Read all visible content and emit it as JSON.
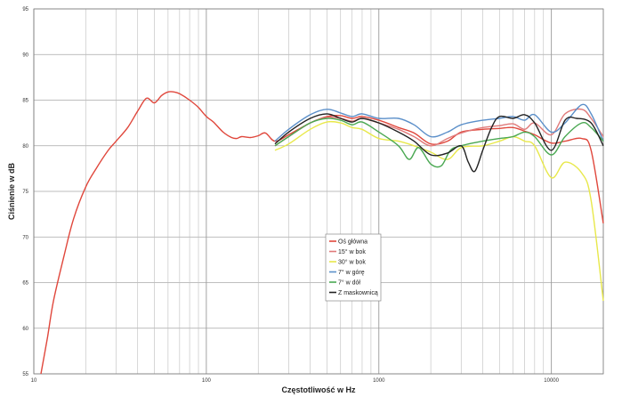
{
  "chart_data": {
    "type": "line",
    "xlabel": "Częstotliwość w Hz",
    "ylabel": "Ciśnienie w dB",
    "xscale": "log",
    "xlim": [
      10,
      20000
    ],
    "ylim": [
      55,
      95
    ],
    "grid": true,
    "legend_position": "center",
    "x_tick_labels": [
      "10",
      "100",
      "1000",
      "10000"
    ],
    "y_tick_labels": [
      "55",
      "60",
      "65",
      "70",
      "75",
      "80",
      "85",
      "90",
      "95"
    ],
    "series": [
      {
        "name": "Oś główna",
        "color": "#e0473c",
        "points": [
          [
            11,
            55
          ],
          [
            12,
            59
          ],
          [
            13,
            63
          ],
          [
            15,
            68
          ],
          [
            17,
            72
          ],
          [
            20,
            75.5
          ],
          [
            23,
            77.5
          ],
          [
            27,
            79.5
          ],
          [
            30,
            80.5
          ],
          [
            35,
            82
          ],
          [
            40,
            83.8
          ],
          [
            45,
            85.2
          ],
          [
            50,
            84.7
          ],
          [
            55,
            85.5
          ],
          [
            60,
            85.9
          ],
          [
            65,
            85.9
          ],
          [
            70,
            85.7
          ],
          [
            80,
            85
          ],
          [
            90,
            84.2
          ],
          [
            100,
            83.2
          ],
          [
            110,
            82.6
          ],
          [
            125,
            81.5
          ],
          [
            140,
            80.9
          ],
          [
            150,
            80.8
          ],
          [
            160,
            81
          ],
          [
            180,
            80.9
          ],
          [
            200,
            81.1
          ],
          [
            220,
            81.4
          ],
          [
            250,
            80.5
          ],
          [
            300,
            81.2
          ],
          [
            400,
            82.5
          ],
          [
            500,
            83.2
          ],
          [
            600,
            83.3
          ],
          [
            700,
            83
          ],
          [
            800,
            83.2
          ],
          [
            1000,
            82.8
          ],
          [
            1300,
            82
          ],
          [
            1600,
            81.4
          ],
          [
            2000,
            80.2
          ],
          [
            2500,
            80.5
          ],
          [
            3000,
            81.5
          ],
          [
            4000,
            81.8
          ],
          [
            5000,
            81.9
          ],
          [
            6000,
            82
          ],
          [
            7000,
            81.6
          ],
          [
            8000,
            81.2
          ],
          [
            10000,
            80.3
          ],
          [
            12000,
            80.5
          ],
          [
            15000,
            80.8
          ],
          [
            17000,
            79.5
          ],
          [
            20000,
            71.5
          ]
        ]
      },
      {
        "name": "15° w bok",
        "color": "#e07a7a",
        "points": [
          [
            250,
            80
          ],
          [
            300,
            81
          ],
          [
            400,
            82.5
          ],
          [
            500,
            83.1
          ],
          [
            600,
            83
          ],
          [
            700,
            82.7
          ],
          [
            800,
            83
          ],
          [
            1000,
            82.5
          ],
          [
            1300,
            81.8
          ],
          [
            1600,
            81
          ],
          [
            2000,
            80
          ],
          [
            2500,
            80.8
          ],
          [
            3000,
            81.4
          ],
          [
            4000,
            82
          ],
          [
            5000,
            82.2
          ],
          [
            6000,
            82.4
          ],
          [
            7000,
            81.8
          ],
          [
            8000,
            82.5
          ],
          [
            10000,
            81.2
          ],
          [
            12000,
            83.5
          ],
          [
            15000,
            84
          ],
          [
            17000,
            83
          ],
          [
            20000,
            81
          ]
        ]
      },
      {
        "name": "30° w bok",
        "color": "#e8e84a",
        "points": [
          [
            250,
            79.5
          ],
          [
            300,
            80.2
          ],
          [
            400,
            81.8
          ],
          [
            500,
            82.6
          ],
          [
            600,
            82.5
          ],
          [
            700,
            82
          ],
          [
            800,
            81.8
          ],
          [
            1000,
            80.8
          ],
          [
            1300,
            80.5
          ],
          [
            1600,
            80
          ],
          [
            2000,
            79.3
          ],
          [
            2500,
            78.5
          ],
          [
            3000,
            79.8
          ],
          [
            4000,
            80
          ],
          [
            5000,
            80.5
          ],
          [
            6000,
            81
          ],
          [
            7000,
            80.5
          ],
          [
            8000,
            80
          ],
          [
            10000,
            76.5
          ],
          [
            12000,
            78.2
          ],
          [
            15000,
            77
          ],
          [
            17000,
            74
          ],
          [
            20000,
            63
          ]
        ]
      },
      {
        "name": "7° w górę",
        "color": "#5b8fc9",
        "points": [
          [
            250,
            80.5
          ],
          [
            300,
            81.8
          ],
          [
            400,
            83.4
          ],
          [
            500,
            84
          ],
          [
            600,
            83.6
          ],
          [
            700,
            83.2
          ],
          [
            800,
            83.5
          ],
          [
            1000,
            83
          ],
          [
            1300,
            83
          ],
          [
            1600,
            82.3
          ],
          [
            2000,
            81
          ],
          [
            2500,
            81.5
          ],
          [
            3000,
            82.3
          ],
          [
            4000,
            82.8
          ],
          [
            5000,
            83
          ],
          [
            6000,
            83.2
          ],
          [
            7000,
            82.8
          ],
          [
            8000,
            83.4
          ],
          [
            10000,
            81.5
          ],
          [
            12000,
            82.5
          ],
          [
            15000,
            84.5
          ],
          [
            17000,
            83.5
          ],
          [
            20000,
            80.5
          ]
        ]
      },
      {
        "name": "7° w dół",
        "color": "#4aa852",
        "points": [
          [
            250,
            80
          ],
          [
            300,
            81
          ],
          [
            400,
            82.5
          ],
          [
            500,
            83
          ],
          [
            600,
            82.8
          ],
          [
            700,
            82.3
          ],
          [
            800,
            82.6
          ],
          [
            1000,
            81.5
          ],
          [
            1300,
            80
          ],
          [
            1500,
            78.5
          ],
          [
            1700,
            79.8
          ],
          [
            2000,
            78
          ],
          [
            2300,
            77.8
          ],
          [
            2600,
            79.5
          ],
          [
            3000,
            80
          ],
          [
            4000,
            80.5
          ],
          [
            5000,
            80.8
          ],
          [
            6000,
            81
          ],
          [
            7000,
            81.5
          ],
          [
            8000,
            81
          ],
          [
            10000,
            79
          ],
          [
            12000,
            81
          ],
          [
            15000,
            82.5
          ],
          [
            17000,
            82
          ],
          [
            20000,
            80.5
          ]
        ]
      },
      {
        "name": "Z maskownicą",
        "color": "#222222",
        "points": [
          [
            250,
            80.2
          ],
          [
            300,
            81.5
          ],
          [
            400,
            83
          ],
          [
            500,
            83.5
          ],
          [
            600,
            83
          ],
          [
            700,
            82.6
          ],
          [
            800,
            83
          ],
          [
            1000,
            82.5
          ],
          [
            1300,
            81.5
          ],
          [
            1600,
            80.5
          ],
          [
            2000,
            79
          ],
          [
            2500,
            79.2
          ],
          [
            3000,
            80
          ],
          [
            3300,
            78.2
          ],
          [
            3600,
            77.2
          ],
          [
            4000,
            79.5
          ],
          [
            4500,
            82
          ],
          [
            5000,
            83.2
          ],
          [
            6000,
            83
          ],
          [
            7000,
            83.4
          ],
          [
            8000,
            82.5
          ],
          [
            10000,
            79.5
          ],
          [
            12000,
            82.8
          ],
          [
            14000,
            83
          ],
          [
            17000,
            82.5
          ],
          [
            20000,
            80
          ]
        ]
      }
    ]
  }
}
